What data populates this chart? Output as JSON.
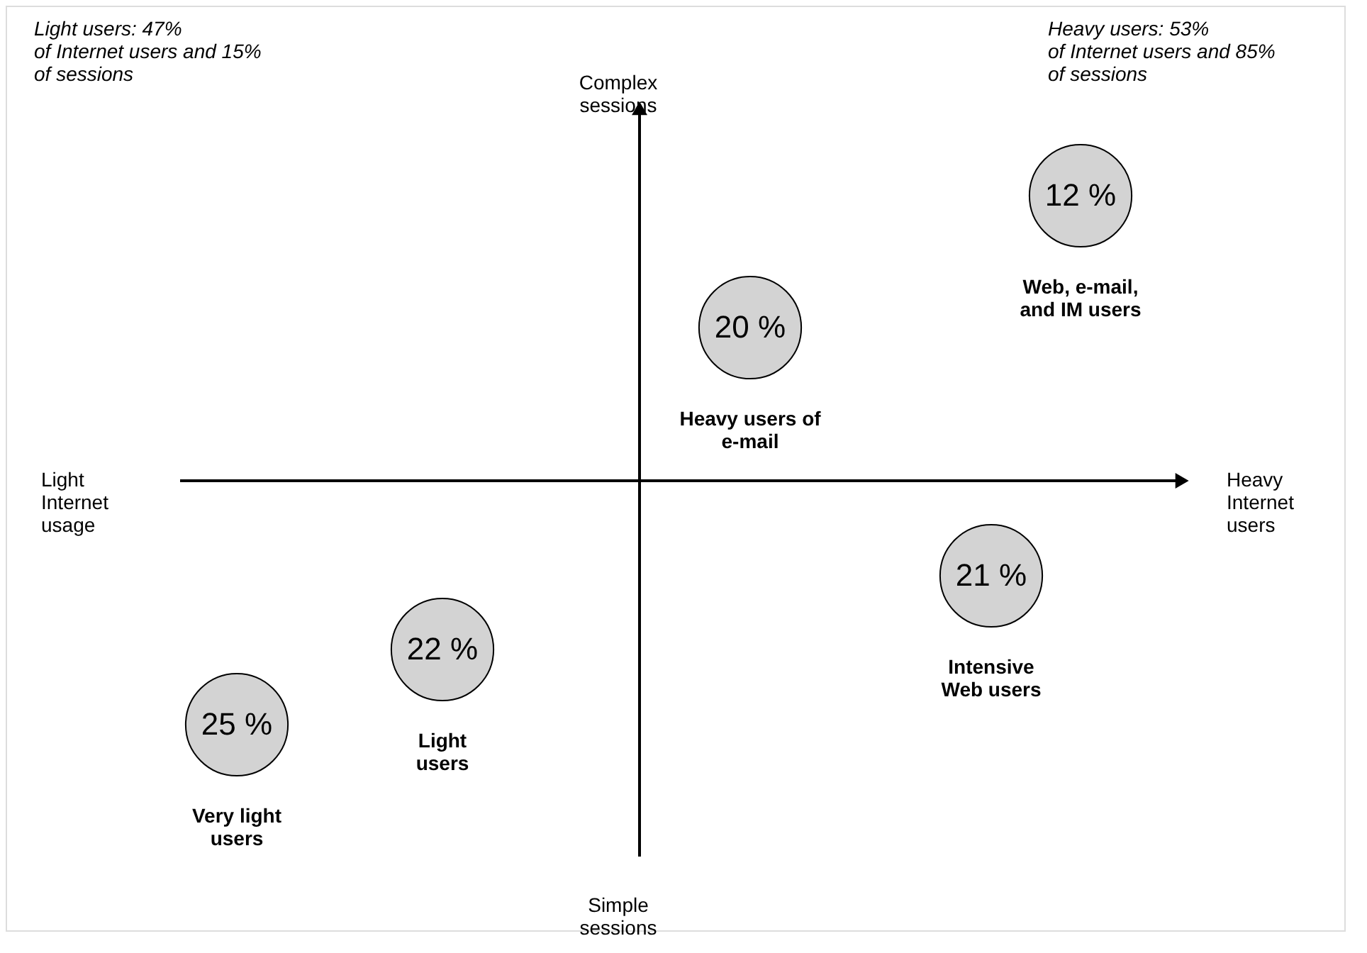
{
  "chart_data": {
    "type": "other",
    "xlabel": "Heavy\nInternet\nusers",
    "ylabel": "Complex\nsessions",
    "categories": [
      "Very light\nusers",
      "Light\nusers",
      "Heavy users of\ne-mail",
      "Intensive\nWeb users",
      "Web, e-mail,\nand IM users"
    ],
    "values": [
      25,
      22,
      20,
      21,
      12
    ],
    "value_labels": [
      "25 %",
      "22 %",
      "20 %",
      "21 %",
      "12 %"
    ],
    "color": "#d3d3d3",
    "annotations": [
      "Light users: 47%\nof Internet users and 15%\nof sessions",
      "Heavy users: 53%\nof Internet users and 85%\nof sessions",
      "Light\nInternet\nusage",
      "Simple\nsessions"
    ]
  }
}
